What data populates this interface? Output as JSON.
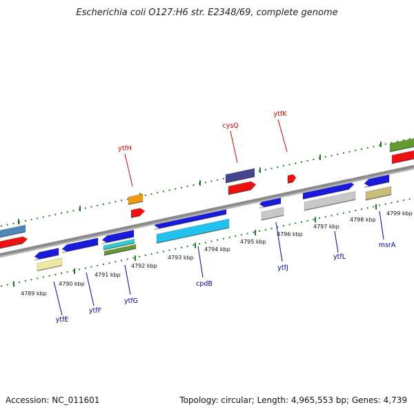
{
  "title": "Escherichia coli O127:H6 str. E2348/69, complete genome",
  "footer": {
    "accession": "Accession: NC_011601",
    "summary": "Topology: circular; Length: 4,965,553 bp; Genes: 4,739"
  },
  "colors": {
    "backbone": "#8a8a8a",
    "tick": "#1e7a1e",
    "label_top": "#cc0000",
    "label_bottom": "#000099"
  },
  "tick_labels": [
    "4789 kbp",
    "4790 kbp",
    "4791 kbp",
    "4792 kbp",
    "4793 kbp",
    "4794 kbp",
    "4795 kbp",
    "4796 kbp",
    "4797 kbp",
    "4798 kbp",
    "4799 kbp"
  ],
  "genes_top": [
    "ytfH",
    "cysQ",
    "ytfK"
  ],
  "genes_bottom": [
    "ytfE",
    "ytfF",
    "ytfG",
    "cpdB",
    "ytfJ",
    "ytfL",
    "msrA"
  ]
}
